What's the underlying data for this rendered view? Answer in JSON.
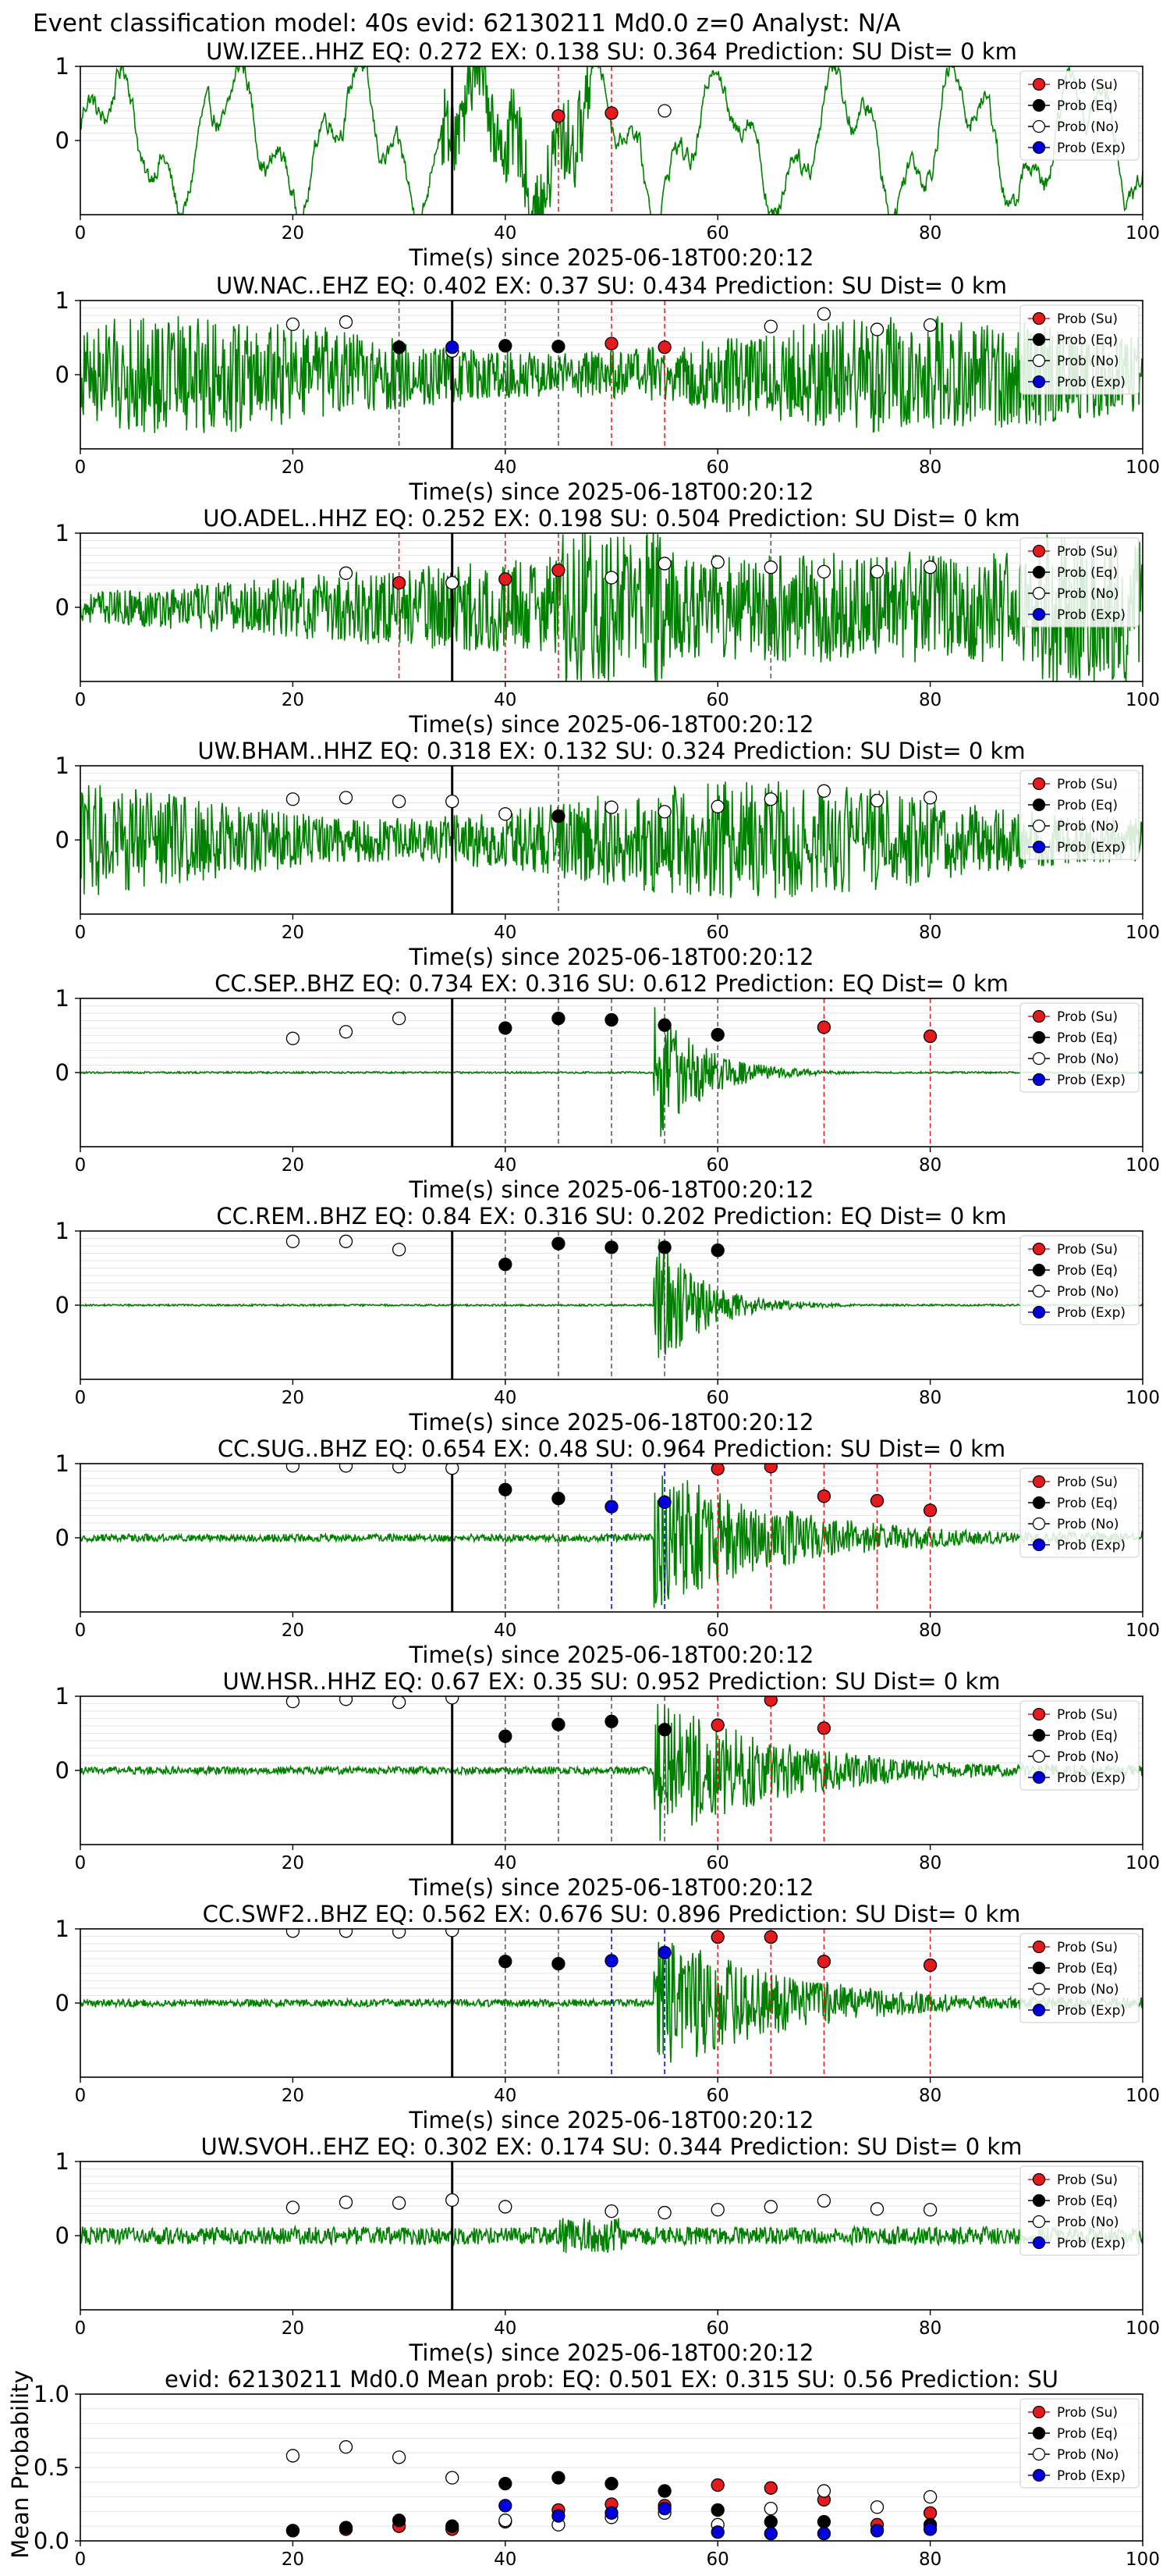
{
  "figure": {
    "suptitle": "Event classification model: 40s evid: 62130211 Md0.0 z=0 Analyst: N/A",
    "xlabel": "Time(s) since 2025-06-18T00:20:12",
    "mean_ylabel": "Mean Probability"
  },
  "legend": [
    "Prob (Su)",
    "Prob (Eq)",
    "Prob (No)",
    "Prob (Exp)"
  ],
  "colors": {
    "waveform": "#008000",
    "su": "#e41a1c",
    "eq": "#000000",
    "no": "#ffffff",
    "exp": "#0000dd",
    "origin_line": "#000000",
    "grid": "#e6e6e6"
  },
  "chart_data": [
    {
      "type": "line",
      "station": "UW.IZEE..HHZ",
      "title": "UW.IZEE..HHZ   EQ: 0.272  EX: 0.138  SU: 0.364   Prediction: SU    Dist= 0 km",
      "xlim": [
        0,
        100
      ],
      "ylim": [
        -1,
        1
      ],
      "yticks": [
        "1",
        "0"
      ],
      "xticks": [
        0,
        20,
        40,
        60,
        80,
        100
      ],
      "origin": 35,
      "waveform": "lowfreq",
      "su": [
        [
          45,
          0.33
        ],
        [
          50,
          0.37
        ]
      ],
      "eq": [],
      "no": [
        [
          55,
          0.4
        ]
      ],
      "exp": [],
      "vlines": [
        {
          "x": 45,
          "c": "su"
        },
        {
          "x": 50,
          "c": "su"
        }
      ]
    },
    {
      "type": "line",
      "station": "UW.NAC..EHZ",
      "title": "UW.NAC..EHZ   EQ: 0.402  EX: 0.37  SU: 0.434   Prediction: SU    Dist= 0 km",
      "xlim": [
        0,
        100
      ],
      "ylim": [
        -1,
        1
      ],
      "yticks": [
        "1",
        "0"
      ],
      "xticks": [
        0,
        20,
        40,
        60,
        80,
        100
      ],
      "origin": 35,
      "waveform": "noisy",
      "su": [
        [
          50,
          0.42
        ],
        [
          55,
          0.37
        ]
      ],
      "eq": [
        [
          30,
          0.37
        ],
        [
          40,
          0.39
        ],
        [
          45,
          0.38
        ]
      ],
      "no": [
        [
          20,
          0.68
        ],
        [
          25,
          0.71
        ],
        [
          35,
          0.32
        ],
        [
          65,
          0.65
        ],
        [
          70,
          0.82
        ],
        [
          75,
          0.61
        ],
        [
          80,
          0.67
        ]
      ],
      "exp": [
        [
          35,
          0.37
        ]
      ],
      "vlines": [
        {
          "x": 30,
          "c": "eq"
        },
        {
          "x": 40,
          "c": "eq"
        },
        {
          "x": 45,
          "c": "eq"
        },
        {
          "x": 50,
          "c": "su"
        },
        {
          "x": 55,
          "c": "su"
        }
      ]
    },
    {
      "type": "line",
      "station": "UO.ADEL..HHZ",
      "title": "UO.ADEL..HHZ   EQ: 0.252  EX: 0.198  SU: 0.504   Prediction: SU    Dist= 0 km",
      "xlim": [
        0,
        100
      ],
      "ylim": [
        -1,
        1
      ],
      "yticks": [
        "1",
        "0"
      ],
      "xticks": [
        0,
        20,
        40,
        60,
        80,
        100
      ],
      "origin": 35,
      "waveform": "noisy_grow",
      "su": [
        [
          30,
          0.33
        ],
        [
          40,
          0.38
        ],
        [
          45,
          0.5
        ]
      ],
      "eq": [],
      "no": [
        [
          25,
          0.46
        ],
        [
          35,
          0.33
        ],
        [
          50,
          0.4
        ],
        [
          55,
          0.59
        ],
        [
          60,
          0.61
        ],
        [
          65,
          0.54
        ],
        [
          70,
          0.48
        ],
        [
          75,
          0.48
        ],
        [
          80,
          0.54
        ]
      ],
      "exp": [],
      "vlines": [
        {
          "x": 30,
          "c": "su"
        },
        {
          "x": 40,
          "c": "su"
        },
        {
          "x": 45,
          "c": "su"
        },
        {
          "x": 65,
          "c": "eq"
        }
      ]
    },
    {
      "type": "line",
      "station": "UW.BHAM..HHZ",
      "title": "UW.BHAM..HHZ   EQ: 0.318  EX: 0.132  SU: 0.324   Prediction: SU    Dist= 0 km",
      "xlim": [
        0,
        100
      ],
      "ylim": [
        -1,
        1
      ],
      "yticks": [
        "1",
        "0"
      ],
      "xticks": [
        0,
        20,
        40,
        60,
        80,
        100
      ],
      "origin": 35,
      "waveform": "noisy",
      "su": [],
      "eq": [
        [
          45,
          0.32
        ]
      ],
      "no": [
        [
          20,
          0.55
        ],
        [
          25,
          0.57
        ],
        [
          30,
          0.52
        ],
        [
          35,
          0.52
        ],
        [
          40,
          0.35
        ],
        [
          50,
          0.44
        ],
        [
          55,
          0.38
        ],
        [
          60,
          0.45
        ],
        [
          65,
          0.55
        ],
        [
          70,
          0.66
        ],
        [
          75,
          0.53
        ],
        [
          80,
          0.57
        ]
      ],
      "exp": [],
      "vlines": [
        {
          "x": 45,
          "c": "eq"
        }
      ]
    },
    {
      "type": "line",
      "station": "CC.SEP..BHZ",
      "title": "CC.SEP..BHZ   EQ: 0.734  EX: 0.316  SU: 0.612   Prediction: EQ    Dist= 0 km",
      "xlim": [
        0,
        100
      ],
      "ylim": [
        -1,
        1
      ],
      "yticks": [
        "1",
        "0"
      ],
      "xticks": [
        0,
        20,
        40,
        60,
        80,
        100
      ],
      "origin": 35,
      "waveform": "event55",
      "su": [
        [
          70,
          0.61
        ],
        [
          80,
          0.49
        ]
      ],
      "eq": [
        [
          40,
          0.6
        ],
        [
          45,
          0.73
        ],
        [
          50,
          0.71
        ],
        [
          55,
          0.64
        ],
        [
          60,
          0.51
        ]
      ],
      "no": [
        [
          20,
          0.46
        ],
        [
          25,
          0.55
        ],
        [
          30,
          0.73
        ]
      ],
      "exp": [],
      "vlines": [
        {
          "x": 40,
          "c": "eq"
        },
        {
          "x": 45,
          "c": "eq"
        },
        {
          "x": 50,
          "c": "eq"
        },
        {
          "x": 55,
          "c": "eq"
        },
        {
          "x": 60,
          "c": "eq"
        },
        {
          "x": 70,
          "c": "su"
        },
        {
          "x": 80,
          "c": "su"
        }
      ]
    },
    {
      "type": "line",
      "station": "CC.REM..BHZ",
      "title": "CC.REM..BHZ   EQ: 0.84  EX: 0.316  SU: 0.202   Prediction: EQ    Dist= 0 km",
      "xlim": [
        0,
        100
      ],
      "ylim": [
        -1,
        1
      ],
      "yticks": [
        "1",
        "0"
      ],
      "xticks": [
        0,
        20,
        40,
        60,
        80,
        100
      ],
      "origin": 35,
      "waveform": "event55",
      "su": [],
      "eq": [
        [
          40,
          0.55
        ],
        [
          45,
          0.83
        ],
        [
          50,
          0.78
        ],
        [
          55,
          0.78
        ],
        [
          60,
          0.74
        ]
      ],
      "no": [
        [
          20,
          0.86
        ],
        [
          25,
          0.86
        ],
        [
          30,
          0.75
        ]
      ],
      "exp": [],
      "vlines": [
        {
          "x": 40,
          "c": "eq"
        },
        {
          "x": 45,
          "c": "eq"
        },
        {
          "x": 50,
          "c": "eq"
        },
        {
          "x": 55,
          "c": "eq"
        },
        {
          "x": 60,
          "c": "eq"
        }
      ]
    },
    {
      "type": "line",
      "station": "CC.SUG..BHZ",
      "title": "CC.SUG..BHZ   EQ: 0.654  EX: 0.48  SU: 0.964   Prediction: SU    Dist= 0 km",
      "xlim": [
        0,
        100
      ],
      "ylim": [
        -1,
        1
      ],
      "yticks": [
        "1",
        "0"
      ],
      "xticks": [
        0,
        20,
        40,
        60,
        80,
        100
      ],
      "origin": 35,
      "waveform": "event55_long",
      "su": [
        [
          60,
          0.93
        ],
        [
          65,
          0.96
        ],
        [
          70,
          0.56
        ],
        [
          75,
          0.5
        ],
        [
          80,
          0.37
        ]
      ],
      "eq": [
        [
          40,
          0.65
        ],
        [
          45,
          0.53
        ]
      ],
      "no": [
        [
          20,
          0.97
        ],
        [
          25,
          0.97
        ],
        [
          30,
          0.96
        ],
        [
          35,
          0.94
        ]
      ],
      "exp": [
        [
          50,
          0.42
        ],
        [
          55,
          0.48
        ]
      ],
      "vlines": [
        {
          "x": 40,
          "c": "eq"
        },
        {
          "x": 45,
          "c": "eq"
        },
        {
          "x": 50,
          "c": "exp"
        },
        {
          "x": 55,
          "c": "exp"
        },
        {
          "x": 60,
          "c": "su"
        },
        {
          "x": 65,
          "c": "su"
        },
        {
          "x": 70,
          "c": "su"
        },
        {
          "x": 75,
          "c": "su"
        },
        {
          "x": 80,
          "c": "su"
        }
      ]
    },
    {
      "type": "line",
      "station": "UW.HSR..HHZ",
      "title": "UW.HSR..HHZ   EQ: 0.67  EX: 0.35  SU: 0.952   Prediction: SU    Dist= 0 km",
      "xlim": [
        0,
        100
      ],
      "ylim": [
        -1,
        1
      ],
      "yticks": [
        "1",
        "0"
      ],
      "xticks": [
        0,
        20,
        40,
        60,
        80,
        100
      ],
      "origin": 35,
      "waveform": "event55_long",
      "su": [
        [
          60,
          0.61
        ],
        [
          65,
          0.95
        ],
        [
          70,
          0.57
        ]
      ],
      "eq": [
        [
          40,
          0.46
        ],
        [
          45,
          0.62
        ],
        [
          50,
          0.66
        ],
        [
          55,
          0.55
        ]
      ],
      "no": [
        [
          20,
          0.93
        ],
        [
          25,
          0.96
        ],
        [
          30,
          0.92
        ],
        [
          35,
          0.98
        ]
      ],
      "exp": [],
      "vlines": [
        {
          "x": 40,
          "c": "eq"
        },
        {
          "x": 45,
          "c": "eq"
        },
        {
          "x": 50,
          "c": "eq"
        },
        {
          "x": 55,
          "c": "eq"
        },
        {
          "x": 60,
          "c": "su"
        },
        {
          "x": 65,
          "c": "su"
        },
        {
          "x": 70,
          "c": "su"
        }
      ]
    },
    {
      "type": "line",
      "station": "CC.SWF2..BHZ",
      "title": "CC.SWF2..BHZ   EQ: 0.562  EX: 0.676  SU: 0.896   Prediction: SU    Dist= 0 km",
      "xlim": [
        0,
        100
      ],
      "ylim": [
        -1,
        1
      ],
      "yticks": [
        "1",
        "0"
      ],
      "xticks": [
        0,
        20,
        40,
        60,
        80,
        100
      ],
      "origin": 35,
      "waveform": "event55_long",
      "su": [
        [
          60,
          0.89
        ],
        [
          65,
          0.89
        ],
        [
          70,
          0.56
        ],
        [
          80,
          0.51
        ]
      ],
      "eq": [
        [
          40,
          0.56
        ],
        [
          45,
          0.53
        ]
      ],
      "no": [
        [
          20,
          0.97
        ],
        [
          25,
          0.97
        ],
        [
          30,
          0.96
        ],
        [
          35,
          0.98
        ]
      ],
      "exp": [
        [
          50,
          0.57
        ],
        [
          55,
          0.68
        ]
      ],
      "vlines": [
        {
          "x": 40,
          "c": "eq"
        },
        {
          "x": 45,
          "c": "eq"
        },
        {
          "x": 50,
          "c": "exp"
        },
        {
          "x": 55,
          "c": "exp"
        },
        {
          "x": 60,
          "c": "su"
        },
        {
          "x": 65,
          "c": "su"
        },
        {
          "x": 70,
          "c": "su"
        },
        {
          "x": 80,
          "c": "su"
        }
      ]
    },
    {
      "type": "line",
      "station": "UW.SVOH..EHZ",
      "title": "UW.SVOH..EHZ   EQ: 0.302  EX: 0.174  SU: 0.344   Prediction: SU    Dist= 0 km",
      "xlim": [
        0,
        100
      ],
      "ylim": [
        -1,
        1
      ],
      "yticks": [
        "1",
        "0"
      ],
      "xticks": [
        0,
        20,
        40,
        60,
        80,
        100
      ],
      "origin": 35,
      "waveform": "small",
      "su": [],
      "eq": [],
      "no": [
        [
          20,
          0.38
        ],
        [
          25,
          0.45
        ],
        [
          30,
          0.44
        ],
        [
          35,
          0.48
        ],
        [
          40,
          0.39
        ],
        [
          50,
          0.33
        ],
        [
          55,
          0.31
        ],
        [
          60,
          0.35
        ],
        [
          65,
          0.39
        ],
        [
          70,
          0.47
        ],
        [
          75,
          0.36
        ],
        [
          80,
          0.35
        ]
      ],
      "exp": [],
      "vlines": []
    },
    {
      "type": "scatter",
      "station": "mean",
      "title": "evid: 62130211  Md0.0   Mean prob:   EQ: 0.501  EX: 0.315  SU: 0.56   Prediction: SU",
      "xlim": [
        0,
        100
      ],
      "ylim": [
        0,
        1
      ],
      "yticks": [
        "1.0",
        "0.5",
        "0.0"
      ],
      "xticks": [
        0,
        20,
        40,
        60,
        80,
        100
      ],
      "origin": null,
      "waveform": null,
      "su": [
        [
          20,
          0.07
        ],
        [
          25,
          0.08
        ],
        [
          30,
          0.1
        ],
        [
          35,
          0.08
        ],
        [
          40,
          0.13
        ],
        [
          45,
          0.21
        ],
        [
          50,
          0.25
        ],
        [
          55,
          0.24
        ],
        [
          60,
          0.38
        ],
        [
          65,
          0.36
        ],
        [
          70,
          0.28
        ],
        [
          75,
          0.11
        ],
        [
          80,
          0.19
        ]
      ],
      "eq": [
        [
          20,
          0.07
        ],
        [
          25,
          0.09
        ],
        [
          30,
          0.14
        ],
        [
          35,
          0.1
        ],
        [
          40,
          0.39
        ],
        [
          45,
          0.43
        ],
        [
          50,
          0.39
        ],
        [
          55,
          0.34
        ],
        [
          60,
          0.21
        ],
        [
          65,
          0.13
        ],
        [
          70,
          0.13
        ],
        [
          75,
          0.07
        ],
        [
          80,
          0.11
        ]
      ],
      "no": [
        [
          20,
          0.58
        ],
        [
          25,
          0.64
        ],
        [
          30,
          0.57
        ],
        [
          35,
          0.43
        ],
        [
          40,
          0.14
        ],
        [
          45,
          0.11
        ],
        [
          50,
          0.16
        ],
        [
          55,
          0.19
        ],
        [
          60,
          0.11
        ],
        [
          65,
          0.22
        ],
        [
          70,
          0.34
        ],
        [
          75,
          0.23
        ],
        [
          80,
          0.3
        ]
      ],
      "exp": [
        [
          40,
          0.24
        ],
        [
          45,
          0.17
        ],
        [
          50,
          0.19
        ],
        [
          55,
          0.22
        ],
        [
          60,
          0.06
        ],
        [
          65,
          0.05
        ],
        [
          70,
          0.05
        ],
        [
          75,
          0.07
        ],
        [
          80,
          0.08
        ]
      ],
      "vlines": []
    }
  ]
}
